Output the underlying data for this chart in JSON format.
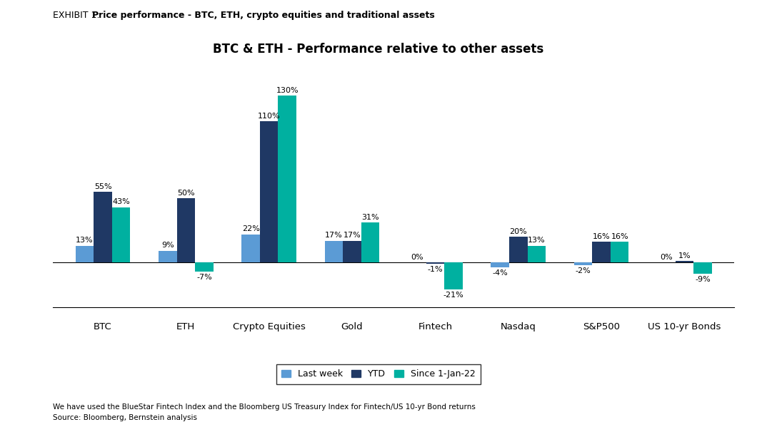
{
  "title": "BTC & ETH - Performance relative to other assets",
  "exhibit_label": "EXHIBIT 1:",
  "exhibit_bold": "Price performance - BTC, ETH, crypto equities and traditional assets",
  "categories": [
    "BTC",
    "ETH",
    "Crypto Equities",
    "Gold",
    "Fintech",
    "Nasdaq",
    "S&P500",
    "US 10-yr Bonds"
  ],
  "last_week": [
    13,
    9,
    22,
    17,
    0,
    -4,
    -2,
    0
  ],
  "ytd": [
    55,
    50,
    110,
    17,
    -1,
    20,
    16,
    1
  ],
  "since_jan22": [
    43,
    -7,
    130,
    31,
    -21,
    13,
    16,
    -9
  ],
  "colors": {
    "last_week": "#5b9bd5",
    "ytd": "#1f3864",
    "since_jan22": "#00b0a0"
  },
  "bar_width": 0.22,
  "ylim": [
    -35,
    148
  ],
  "footnote1": "We have used the BlueStar Fintech Index and the Bloomberg US Treasury Index for Fintech/US 10-yr Bond returns",
  "footnote2": "Source: Bloomberg, Bernstein analysis",
  "background_color": "#ffffff",
  "title_fontsize": 12,
  "exhibit_fontsize": 9,
  "label_fontsize": 8,
  "cat_fontsize": 9.5,
  "legend_fontsize": 9
}
